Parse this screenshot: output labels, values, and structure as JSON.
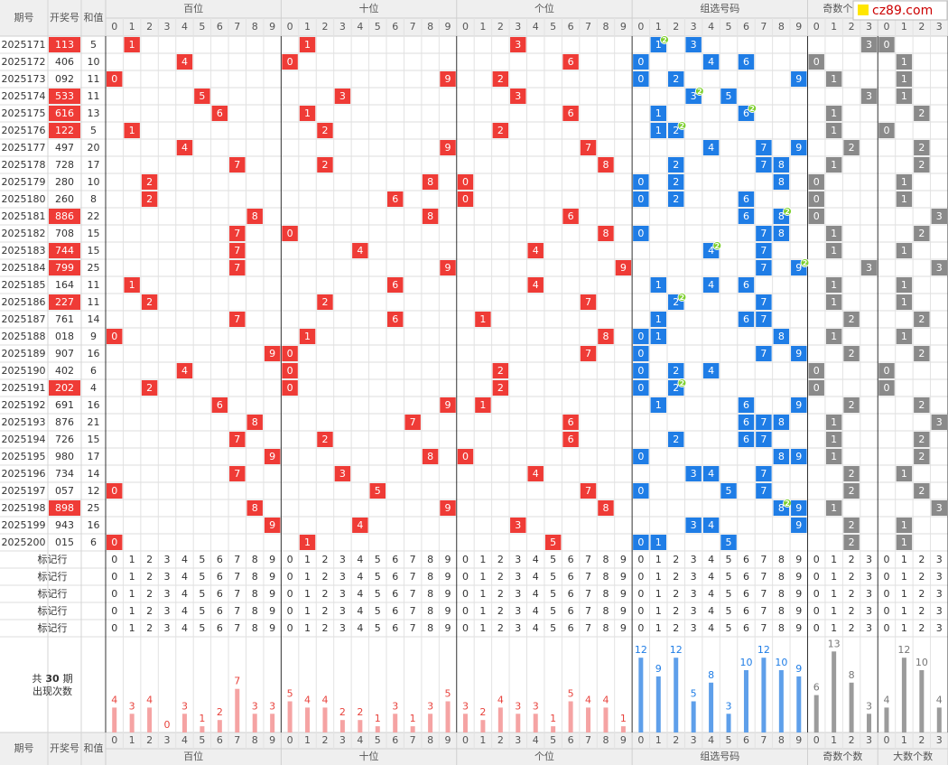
{
  "headers": {
    "period": "期号",
    "number": "开奖号",
    "sum": "和值"
  },
  "groups": [
    {
      "name": "百位",
      "digits": [
        0,
        1,
        2,
        3,
        4,
        5,
        6,
        7,
        8,
        9
      ]
    },
    {
      "name": "十位",
      "digits": [
        0,
        1,
        2,
        3,
        4,
        5,
        6,
        7,
        8,
        9
      ]
    },
    {
      "name": "个位",
      "digits": [
        0,
        1,
        2,
        3,
        4,
        5,
        6,
        7,
        8,
        9
      ]
    },
    {
      "name": "组选号码",
      "digits": [
        0,
        1,
        2,
        3,
        4,
        5,
        6,
        7,
        8,
        9
      ]
    },
    {
      "name": "奇数个数",
      "digits": [
        0,
        1,
        2,
        3
      ]
    },
    {
      "name": "大数个数",
      "digits": [
        0,
        1,
        2,
        3
      ]
    }
  ],
  "rows": [
    {
      "period": "2025171",
      "number": "113",
      "sum": 5,
      "odd": 3,
      "big": 0
    },
    {
      "period": "2025172",
      "number": "406",
      "sum": 10,
      "odd": 0,
      "big": 1
    },
    {
      "period": "2025173",
      "number": "092",
      "sum": 11,
      "odd": 1,
      "big": 1
    },
    {
      "period": "2025174",
      "number": "533",
      "sum": 11,
      "odd": 3,
      "big": 1
    },
    {
      "period": "2025175",
      "number": "616",
      "sum": 13,
      "odd": 1,
      "big": 2
    },
    {
      "period": "2025176",
      "number": "122",
      "sum": 5,
      "odd": 1,
      "big": 0
    },
    {
      "period": "2025177",
      "number": "497",
      "sum": 20,
      "odd": 2,
      "big": 2
    },
    {
      "period": "2025178",
      "number": "728",
      "sum": 17,
      "odd": 1,
      "big": 2
    },
    {
      "period": "2025179",
      "number": "280",
      "sum": 10,
      "odd": 0,
      "big": 1
    },
    {
      "period": "2025180",
      "number": "260",
      "sum": 8,
      "odd": 0,
      "big": 1
    },
    {
      "period": "2025181",
      "number": "886",
      "sum": 22,
      "odd": 0,
      "big": 3
    },
    {
      "period": "2025182",
      "number": "708",
      "sum": 15,
      "odd": 1,
      "big": 2
    },
    {
      "period": "2025183",
      "number": "744",
      "sum": 15,
      "odd": 1,
      "big": 1
    },
    {
      "period": "2025184",
      "number": "799",
      "sum": 25,
      "odd": 3,
      "big": 3
    },
    {
      "period": "2025185",
      "number": "164",
      "sum": 11,
      "odd": 1,
      "big": 1
    },
    {
      "period": "2025186",
      "number": "227",
      "sum": 11,
      "odd": 1,
      "big": 1
    },
    {
      "period": "2025187",
      "number": "761",
      "sum": 14,
      "odd": 2,
      "big": 2
    },
    {
      "period": "2025188",
      "number": "018",
      "sum": 9,
      "odd": 1,
      "big": 1
    },
    {
      "period": "2025189",
      "number": "907",
      "sum": 16,
      "odd": 2,
      "big": 2
    },
    {
      "period": "2025190",
      "number": "402",
      "sum": 6,
      "odd": 0,
      "big": 0
    },
    {
      "period": "2025191",
      "number": "202",
      "sum": 4,
      "odd": 0,
      "big": 0
    },
    {
      "period": "2025192",
      "number": "691",
      "sum": 16,
      "odd": 2,
      "big": 2
    },
    {
      "period": "2025193",
      "number": "876",
      "sum": 21,
      "odd": 1,
      "big": 3
    },
    {
      "period": "2025194",
      "number": "726",
      "sum": 15,
      "odd": 1,
      "big": 2
    },
    {
      "period": "2025195",
      "number": "980",
      "sum": 17,
      "odd": 1,
      "big": 2
    },
    {
      "period": "2025196",
      "number": "734",
      "sum": 14,
      "odd": 2,
      "big": 1
    },
    {
      "period": "2025197",
      "number": "057",
      "sum": 12,
      "odd": 2,
      "big": 2
    },
    {
      "period": "2025198",
      "number": "898",
      "sum": 25,
      "odd": 1,
      "big": 3
    },
    {
      "period": "2025199",
      "number": "943",
      "sum": 16,
      "odd": 2,
      "big": 1
    },
    {
      "period": "2025200",
      "number": "015",
      "sum": 6,
      "odd": 2,
      "big": 1
    }
  ],
  "mark_rows": [
    "标记行",
    "标记行",
    "标记行",
    "标记行",
    "标记行"
  ],
  "summary": {
    "prefix": "共",
    "periods": 30,
    "suffix": "期",
    "label": "出现次数"
  },
  "counts": [
    [
      4,
      3,
      4,
      0,
      3,
      1,
      2,
      7,
      3,
      3
    ],
    [
      5,
      4,
      4,
      2,
      2,
      1,
      3,
      1,
      3,
      5
    ],
    [
      3,
      2,
      4,
      3,
      3,
      1,
      5,
      4,
      4,
      1
    ],
    [
      12,
      9,
      12,
      5,
      8,
      3,
      10,
      12,
      10,
      9
    ],
    [
      6,
      13,
      8,
      3
    ],
    [
      4,
      12,
      10,
      4
    ]
  ],
  "logo": "cz89.com"
}
